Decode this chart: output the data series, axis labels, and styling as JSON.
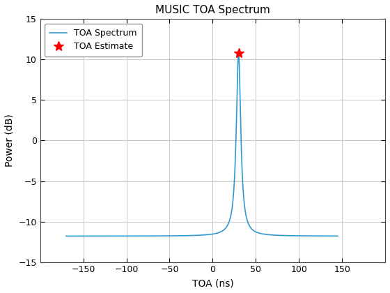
{
  "title": "MUSIC TOA Spectrum",
  "xlabel": "TOA (ns)",
  "ylabel": "Power (dB)",
  "xlim": [
    -200,
    200
  ],
  "ylim": [
    -15,
    15
  ],
  "xticks": [
    -150,
    -100,
    -50,
    0,
    50,
    100,
    150
  ],
  "yticks": [
    -15,
    -10,
    -5,
    0,
    5,
    10,
    15
  ],
  "spectrum_color": "#3399cc",
  "estimate_color": "#ff0000",
  "peak_x": 30,
  "peak_y": 10.8,
  "baseline": -11.8,
  "background_color": "#ffffff",
  "grid_color": "#c8c8c8",
  "legend_labels": [
    "TOA Spectrum",
    "TOA Estimate"
  ],
  "figsize": [
    5.6,
    4.2
  ],
  "dpi": 100
}
